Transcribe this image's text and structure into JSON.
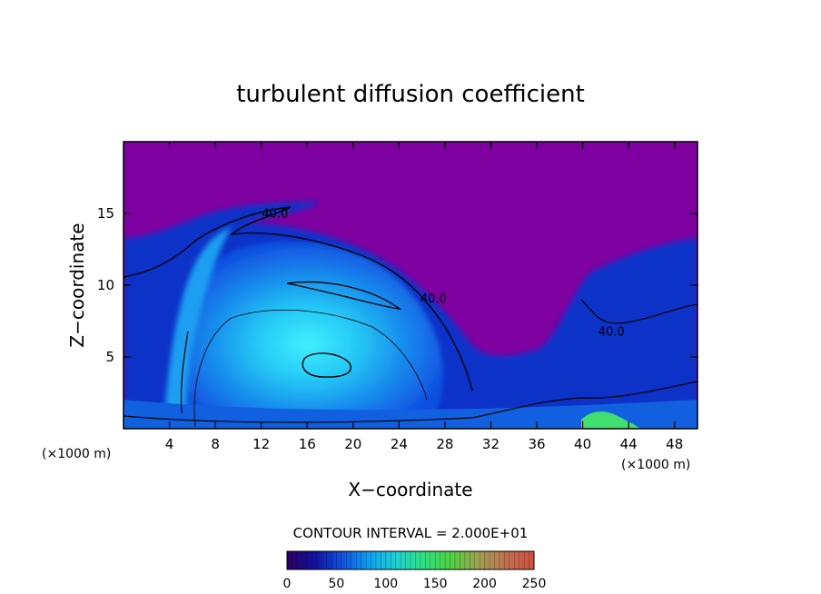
{
  "chart_data": {
    "type": "heatmap",
    "title": "turbulent diffusion coefficient",
    "xlabel": "X−coordinate",
    "ylabel": "Z−coordinate",
    "x_unit_left": "(×1000 m)",
    "x_unit_right": "(×1000 m)",
    "xlim": [
      0,
      50
    ],
    "ylim": [
      0,
      20
    ],
    "x_ticks": [
      4,
      8,
      12,
      16,
      20,
      24,
      28,
      32,
      36,
      40,
      44,
      48
    ],
    "y_ticks": [
      5,
      10,
      15
    ],
    "contour_interval_text": "CONTOUR INTERVAL = 2.000E+01",
    "contour_labels": [
      {
        "text": "40.0",
        "x": 13.2,
        "z": 14.7
      },
      {
        "text": "40.0",
        "x": 27.0,
        "z": 8.8
      },
      {
        "text": "40.0",
        "x": 42.5,
        "z": 6.5
      }
    ],
    "colorbar": {
      "min": 0,
      "max": 250,
      "ticks": [
        0,
        50,
        100,
        150,
        200,
        250
      ],
      "colors": [
        "#2a0060",
        "#1010a0",
        "#1050e0",
        "#10a0f0",
        "#20d0d0",
        "#30e080",
        "#50d040",
        "#a0a050",
        "#c07050",
        "#d05040"
      ]
    },
    "colors": {
      "background_low": "#7f00a0",
      "field_core": "#30e8f8",
      "field_mid": "#1a9ff0",
      "field_outer": "#1050e0",
      "field_edge": "#1020b0"
    }
  }
}
